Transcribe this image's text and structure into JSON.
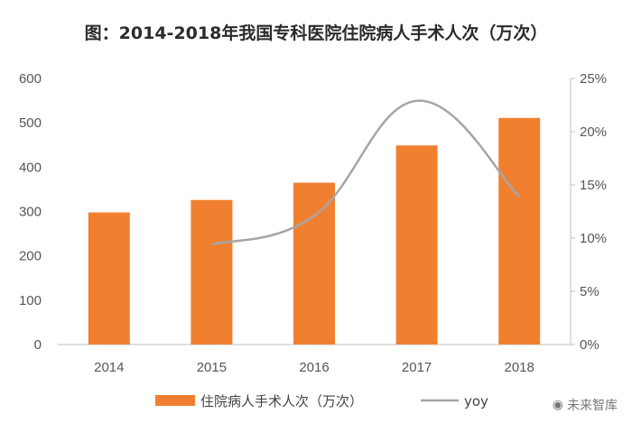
{
  "chart_data": {
    "type": "bar",
    "title": "图：2014-2018年我国专科医院住院病人手术人次（万次）",
    "categories": [
      "2014",
      "2015",
      "2016",
      "2017",
      "2018"
    ],
    "series": [
      {
        "name": "住院病人手术人次（万次）",
        "type": "bar",
        "axis": "left",
        "values": [
          298,
          326,
          365,
          449,
          511
        ]
      },
      {
        "name": "yoy",
        "type": "line",
        "axis": "right",
        "values": [
          null,
          9.4,
          12.1,
          22.9,
          13.9
        ]
      }
    ],
    "yleft": {
      "ylim": [
        0,
        600
      ],
      "ticks": [
        "0",
        "100",
        "200",
        "300",
        "400",
        "500",
        "600"
      ]
    },
    "yright": {
      "ylim": [
        0,
        25
      ],
      "ticks": [
        "0%",
        "5%",
        "10%",
        "15%",
        "20%",
        "25%"
      ]
    },
    "legend": "bottom",
    "grid": false,
    "colors": {
      "bar": "#F08030",
      "line": "#A6A6A6"
    }
  },
  "watermark": {
    "text": "未来智库",
    "icon": "wechat-icon"
  }
}
